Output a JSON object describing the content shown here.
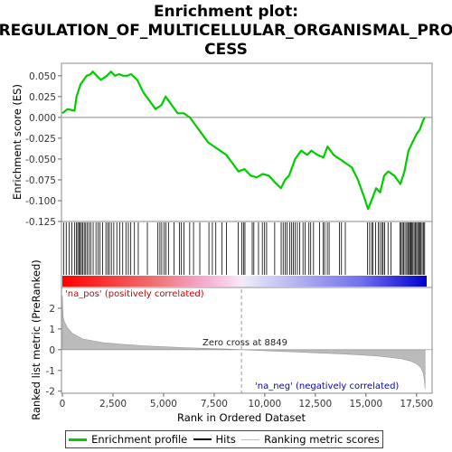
{
  "chart_data": [
    {
      "type": "line",
      "title": "Enrichment plot: REGULATION_OF_MULTICELLULAR_ORGANISMAL_PROCESS",
      "title_lines": [
        "Enrichment plot:",
        "REGULATION_OF_MULTICELLULAR_ORGANISMAL_PRO",
        "CESS"
      ],
      "ylabel": "Enrichment score (ES)",
      "ylim": [
        -0.125,
        0.065
      ],
      "yticks": [
        0.05,
        0.025,
        0.0,
        -0.025,
        -0.05,
        -0.075,
        -0.1,
        -0.125
      ],
      "ytick_labels": [
        "0.050",
        "0.025",
        "0.000",
        "-0.025",
        "-0.050",
        "-0.075",
        "-0.100",
        "-0.125"
      ],
      "xlim": [
        0,
        18000
      ],
      "series": [
        {
          "name": "Enrichment profile",
          "color": "#00cc00",
          "x": [
            0,
            250,
            600,
            700,
            900,
            1200,
            1400,
            1500,
            1700,
            1900,
            2200,
            2400,
            2600,
            2800,
            3000,
            3200,
            3400,
            3700,
            4000,
            4300,
            4600,
            4900,
            5100,
            5400,
            5700,
            6000,
            6300,
            6600,
            6900,
            7200,
            7500,
            7800,
            8100,
            8400,
            8700,
            9000,
            9300,
            9600,
            9900,
            10200,
            10500,
            10800,
            11000,
            11200,
            11500,
            11800,
            12100,
            12300,
            12600,
            12900,
            13100,
            13400,
            13700,
            14000,
            14300,
            14600,
            14900,
            15100,
            15300,
            15500,
            15700,
            15900,
            16100,
            16400,
            16700,
            16900,
            17100,
            17300,
            17500,
            17650,
            17800,
            17900
          ],
          "y": [
            0.005,
            0.01,
            0.008,
            0.025,
            0.04,
            0.05,
            0.052,
            0.055,
            0.05,
            0.045,
            0.05,
            0.055,
            0.05,
            0.052,
            0.05,
            0.05,
            0.052,
            0.045,
            0.03,
            0.02,
            0.01,
            0.015,
            0.025,
            0.015,
            0.005,
            0.005,
            0.0,
            -0.01,
            -0.02,
            -0.03,
            -0.035,
            -0.04,
            -0.045,
            -0.055,
            -0.065,
            -0.062,
            -0.07,
            -0.072,
            -0.068,
            -0.07,
            -0.078,
            -0.085,
            -0.075,
            -0.07,
            -0.05,
            -0.04,
            -0.045,
            -0.04,
            -0.045,
            -0.048,
            -0.035,
            -0.045,
            -0.05,
            -0.055,
            -0.06,
            -0.075,
            -0.095,
            -0.11,
            -0.098,
            -0.085,
            -0.09,
            -0.07,
            -0.065,
            -0.07,
            -0.08,
            -0.065,
            -0.04,
            -0.03,
            -0.02,
            -0.015,
            -0.005,
            0.0
          ]
        }
      ]
    },
    {
      "type": "scatter",
      "name": "Hits",
      "xlim": [
        0,
        18000
      ],
      "hit_color": "#000000",
      "hits": [
        60,
        190,
        330,
        470,
        610,
        700,
        760,
        820,
        880,
        940,
        1000,
        1080,
        1150,
        1230,
        1320,
        1410,
        1520,
        1660,
        1760,
        1860,
        1990,
        2150,
        2240,
        2320,
        2420,
        2540,
        2690,
        2830,
        2980,
        3140,
        3260,
        3380,
        3560,
        3750,
        4200,
        4720,
        4820,
        4910,
        5020,
        5110,
        5240,
        5520,
        5780,
        5880,
        6010,
        6290,
        6480,
        6790,
        7240,
        7410,
        7580,
        7890,
        8110,
        8690,
        8870,
        8950,
        9020,
        9380,
        9460,
        9690,
        9880,
        9990,
        10090,
        10490,
        10810,
        10910,
        11010,
        11100,
        11240,
        11330,
        11410,
        11500,
        11610,
        11730,
        11890,
        11990,
        12180,
        12270,
        12410,
        12710,
        12890,
        12960,
        13090,
        13180,
        13690,
        13790,
        13980,
        15080,
        15180,
        15280,
        15340,
        15480,
        15610,
        15690,
        15790,
        15850,
        15920,
        16090,
        16240,
        16680,
        16740,
        16800,
        16860,
        16930,
        17010,
        17070,
        17110,
        17170,
        17220,
        17270,
        17320,
        17380,
        17440,
        17500,
        17560,
        17610,
        17670,
        17720,
        17780,
        17850,
        17900
      ]
    },
    {
      "type": "area",
      "name": "Ranking metric scores",
      "ylabel": "Ranked list metric (PreRanked)",
      "xlabel": "Rank in Ordered Dataset",
      "ylim": [
        -2.1,
        3.0
      ],
      "yticks": [
        2,
        1,
        0,
        -1,
        -2
      ],
      "xticks": [
        0,
        2500,
        5000,
        7500,
        10000,
        12500,
        15000,
        17500
      ],
      "xtick_labels": [
        "0",
        "2,500",
        "5,000",
        "7,500",
        "10,000",
        "12,500",
        "15,000",
        "17,500"
      ],
      "x": [
        0,
        30,
        100,
        250,
        500,
        1000,
        2000,
        3000,
        4000,
        5000,
        6000,
        7000,
        8000,
        8849,
        9500,
        10500,
        11500,
        12500,
        13500,
        14500,
        15500,
        16200,
        16800,
        17200,
        17500,
        17700,
        17820,
        17880,
        17920
      ],
      "values": [
        2.6,
        1.6,
        1.35,
        1.05,
        0.78,
        0.52,
        0.34,
        0.26,
        0.19,
        0.14,
        0.1,
        0.065,
        0.03,
        0.0,
        -0.03,
        -0.07,
        -0.11,
        -0.15,
        -0.19,
        -0.24,
        -0.3,
        -0.37,
        -0.45,
        -0.55,
        -0.68,
        -0.85,
        -1.1,
        -1.4,
        -1.9
      ],
      "fill_color": "#bbbbbb",
      "zero_cross": 8849,
      "zero_cross_label": "Zero cross at 8849",
      "pos_label": "'na_pos' (positively correlated)",
      "pos_label_color": "#cc0000",
      "neg_label": "'na_neg' (negatively correlated)",
      "neg_label_color": "#0000cc"
    }
  ],
  "colorbar": {
    "stops": [
      {
        "at": 0.0,
        "color": "#ff0000"
      },
      {
        "at": 0.25,
        "color": "#f07070"
      },
      {
        "at": 0.4,
        "color": "#f5b0d8"
      },
      {
        "at": 0.49,
        "color": "#f8e8f5"
      },
      {
        "at": 0.51,
        "color": "#e8e8fb"
      },
      {
        "at": 0.65,
        "color": "#b0b0f0"
      },
      {
        "at": 0.82,
        "color": "#7070ee"
      },
      {
        "at": 1.0,
        "color": "#0000cc"
      }
    ]
  },
  "legend": {
    "items": [
      {
        "label": "Enrichment profile",
        "color": "#00cc00"
      },
      {
        "label": "Hits",
        "color": "#000000"
      },
      {
        "label": "Ranking metric scores",
        "color": "#bbbbbb"
      }
    ]
  }
}
